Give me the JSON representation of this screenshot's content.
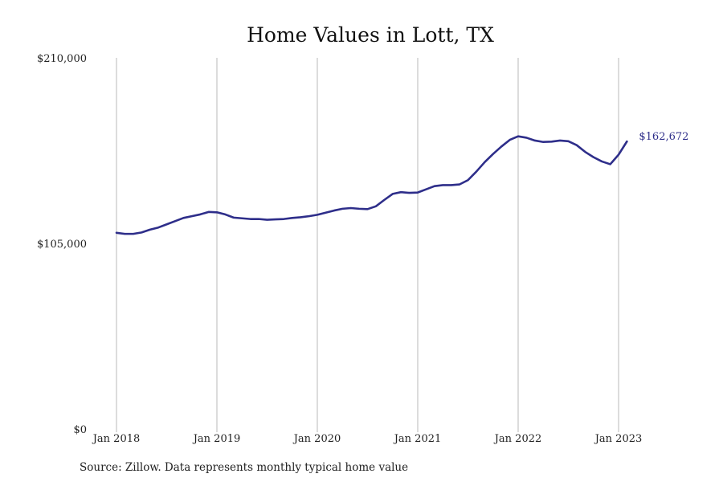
{
  "chart_data": {
    "type": "line",
    "title": "Home Values in Lott, TX",
    "xlabel": "",
    "ylabel": "",
    "x_ticks": [
      {
        "label": "Jan 2018",
        "value": 2018.0
      },
      {
        "label": "Jan 2019",
        "value": 2019.0
      },
      {
        "label": "Jan 2020",
        "value": 2020.0
      },
      {
        "label": "Jan 2021",
        "value": 2021.0
      },
      {
        "label": "Jan 2022",
        "value": 2022.0
      },
      {
        "label": "Jan 2023",
        "value": 2023.0
      }
    ],
    "y_ticks": [
      {
        "label": "$0",
        "value": 0
      },
      {
        "label": "$105,000",
        "value": 105000
      },
      {
        "label": "$210,000",
        "value": 210000
      }
    ],
    "xlim": [
      2018.0,
      2023.0
    ],
    "ylim": [
      0,
      210000
    ],
    "grid": "vertical",
    "series": [
      {
        "color": "#2e2e8a",
        "points": [
          [
            2018.0,
            111000
          ],
          [
            2018.083,
            110400
          ],
          [
            2018.167,
            110400
          ],
          [
            2018.25,
            111200
          ],
          [
            2018.333,
            112800
          ],
          [
            2018.417,
            114000
          ],
          [
            2018.5,
            115800
          ],
          [
            2018.583,
            117600
          ],
          [
            2018.667,
            119400
          ],
          [
            2018.75,
            120400
          ],
          [
            2018.833,
            121400
          ],
          [
            2018.917,
            122800
          ],
          [
            2019.0,
            122600
          ],
          [
            2019.083,
            121400
          ],
          [
            2019.167,
            119600
          ],
          [
            2019.25,
            119200
          ],
          [
            2019.333,
            118800
          ],
          [
            2019.417,
            118800
          ],
          [
            2019.5,
            118400
          ],
          [
            2019.583,
            118600
          ],
          [
            2019.667,
            118800
          ],
          [
            2019.75,
            119400
          ],
          [
            2019.833,
            119800
          ],
          [
            2019.917,
            120400
          ],
          [
            2020.0,
            121200
          ],
          [
            2020.083,
            122400
          ],
          [
            2020.167,
            123600
          ],
          [
            2020.25,
            124600
          ],
          [
            2020.333,
            125000
          ],
          [
            2020.417,
            124600
          ],
          [
            2020.5,
            124400
          ],
          [
            2020.583,
            126000
          ],
          [
            2020.667,
            129600
          ],
          [
            2020.75,
            133000
          ],
          [
            2020.833,
            134000
          ],
          [
            2020.917,
            133600
          ],
          [
            2021.0,
            133800
          ],
          [
            2021.083,
            135600
          ],
          [
            2021.167,
            137400
          ],
          [
            2021.25,
            138000
          ],
          [
            2021.333,
            138000
          ],
          [
            2021.417,
            138400
          ],
          [
            2021.5,
            140800
          ],
          [
            2021.583,
            145600
          ],
          [
            2021.667,
            151000
          ],
          [
            2021.75,
            155600
          ],
          [
            2021.833,
            159800
          ],
          [
            2021.917,
            163600
          ],
          [
            2022.0,
            165600
          ],
          [
            2022.083,
            164800
          ],
          [
            2022.167,
            163200
          ],
          [
            2022.25,
            162400
          ],
          [
            2022.333,
            162600
          ],
          [
            2022.417,
            163200
          ],
          [
            2022.5,
            162800
          ],
          [
            2022.583,
            160600
          ],
          [
            2022.667,
            156800
          ],
          [
            2022.75,
            153800
          ],
          [
            2022.833,
            151400
          ],
          [
            2022.917,
            149800
          ],
          [
            2023.0,
            155200
          ],
          [
            2023.083,
            162672
          ]
        ],
        "end_label": "$162,672"
      }
    ],
    "source": "Source: Zillow. Data represents monthly typical home value"
  }
}
